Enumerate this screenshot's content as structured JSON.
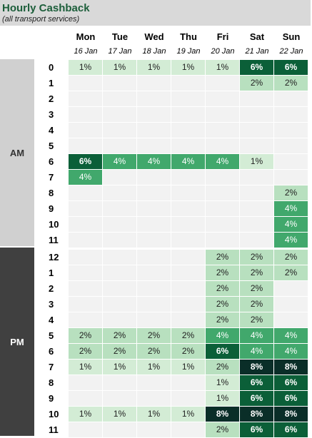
{
  "title": "Hourly Cashback",
  "subtitle": "(all transport services)",
  "days": [
    {
      "name": "Mon",
      "date": "16 Jan"
    },
    {
      "name": "Tue",
      "date": "17 Jan"
    },
    {
      "name": "Wed",
      "date": "18 Jan"
    },
    {
      "name": "Thu",
      "date": "19 Jan"
    },
    {
      "name": "Fri",
      "date": "20 Jan"
    },
    {
      "name": "Sat",
      "date": "21 Jan"
    },
    {
      "name": "Sun",
      "date": "22 Jan"
    }
  ],
  "periods": {
    "am": "AM",
    "pm": "PM"
  },
  "hours": [
    "0",
    "1",
    "2",
    "3",
    "4",
    "5",
    "6",
    "7",
    "8",
    "9",
    "10",
    "11",
    "12",
    "1",
    "2",
    "3",
    "4",
    "5",
    "6",
    "7",
    "8",
    "9",
    "10",
    "11"
  ],
  "colors": {
    "empty": "#f2f2f2",
    "1": "#d3ecd5",
    "2": "#b8e0bf",
    "4": "#41a86c",
    "6": "#0b5f38",
    "8": "#0a2e28"
  },
  "chart_data": {
    "type": "heatmap",
    "title": "Hourly Cashback",
    "subtitle": "(all transport services)",
    "columns": [
      "Mon",
      "Tue",
      "Wed",
      "Thu",
      "Fri",
      "Sat",
      "Sun"
    ],
    "rows": [
      "0",
      "1",
      "2",
      "3",
      "4",
      "5",
      "6",
      "7",
      "8",
      "9",
      "10",
      "11",
      "12",
      "1",
      "2",
      "3",
      "4",
      "5",
      "6",
      "7",
      "8",
      "9",
      "10",
      "11"
    ],
    "unit": "%",
    "values": [
      [
        1,
        1,
        1,
        1,
        1,
        6,
        6
      ],
      [
        null,
        null,
        null,
        null,
        null,
        2,
        2
      ],
      [
        null,
        null,
        null,
        null,
        null,
        null,
        null
      ],
      [
        null,
        null,
        null,
        null,
        null,
        null,
        null
      ],
      [
        null,
        null,
        null,
        null,
        null,
        null,
        null
      ],
      [
        null,
        null,
        null,
        null,
        null,
        null,
        null
      ],
      [
        6,
        4,
        4,
        4,
        4,
        1,
        null
      ],
      [
        4,
        null,
        null,
        null,
        null,
        null,
        null
      ],
      [
        null,
        null,
        null,
        null,
        null,
        null,
        2
      ],
      [
        null,
        null,
        null,
        null,
        null,
        null,
        4
      ],
      [
        null,
        null,
        null,
        null,
        null,
        null,
        4
      ],
      [
        null,
        null,
        null,
        null,
        null,
        null,
        4
      ],
      [
        null,
        null,
        null,
        null,
        2,
        2,
        2
      ],
      [
        null,
        null,
        null,
        null,
        2,
        2,
        2
      ],
      [
        null,
        null,
        null,
        null,
        2,
        2,
        null
      ],
      [
        null,
        null,
        null,
        null,
        2,
        2,
        null
      ],
      [
        null,
        null,
        null,
        null,
        2,
        2,
        null
      ],
      [
        2,
        2,
        2,
        2,
        4,
        4,
        4
      ],
      [
        2,
        2,
        2,
        2,
        6,
        4,
        4
      ],
      [
        1,
        1,
        1,
        1,
        2,
        8,
        8
      ],
      [
        null,
        null,
        null,
        null,
        1,
        6,
        6
      ],
      [
        null,
        null,
        null,
        null,
        1,
        6,
        6
      ],
      [
        1,
        1,
        1,
        1,
        8,
        8,
        8
      ],
      [
        null,
        null,
        null,
        null,
        2,
        6,
        6
      ]
    ]
  }
}
